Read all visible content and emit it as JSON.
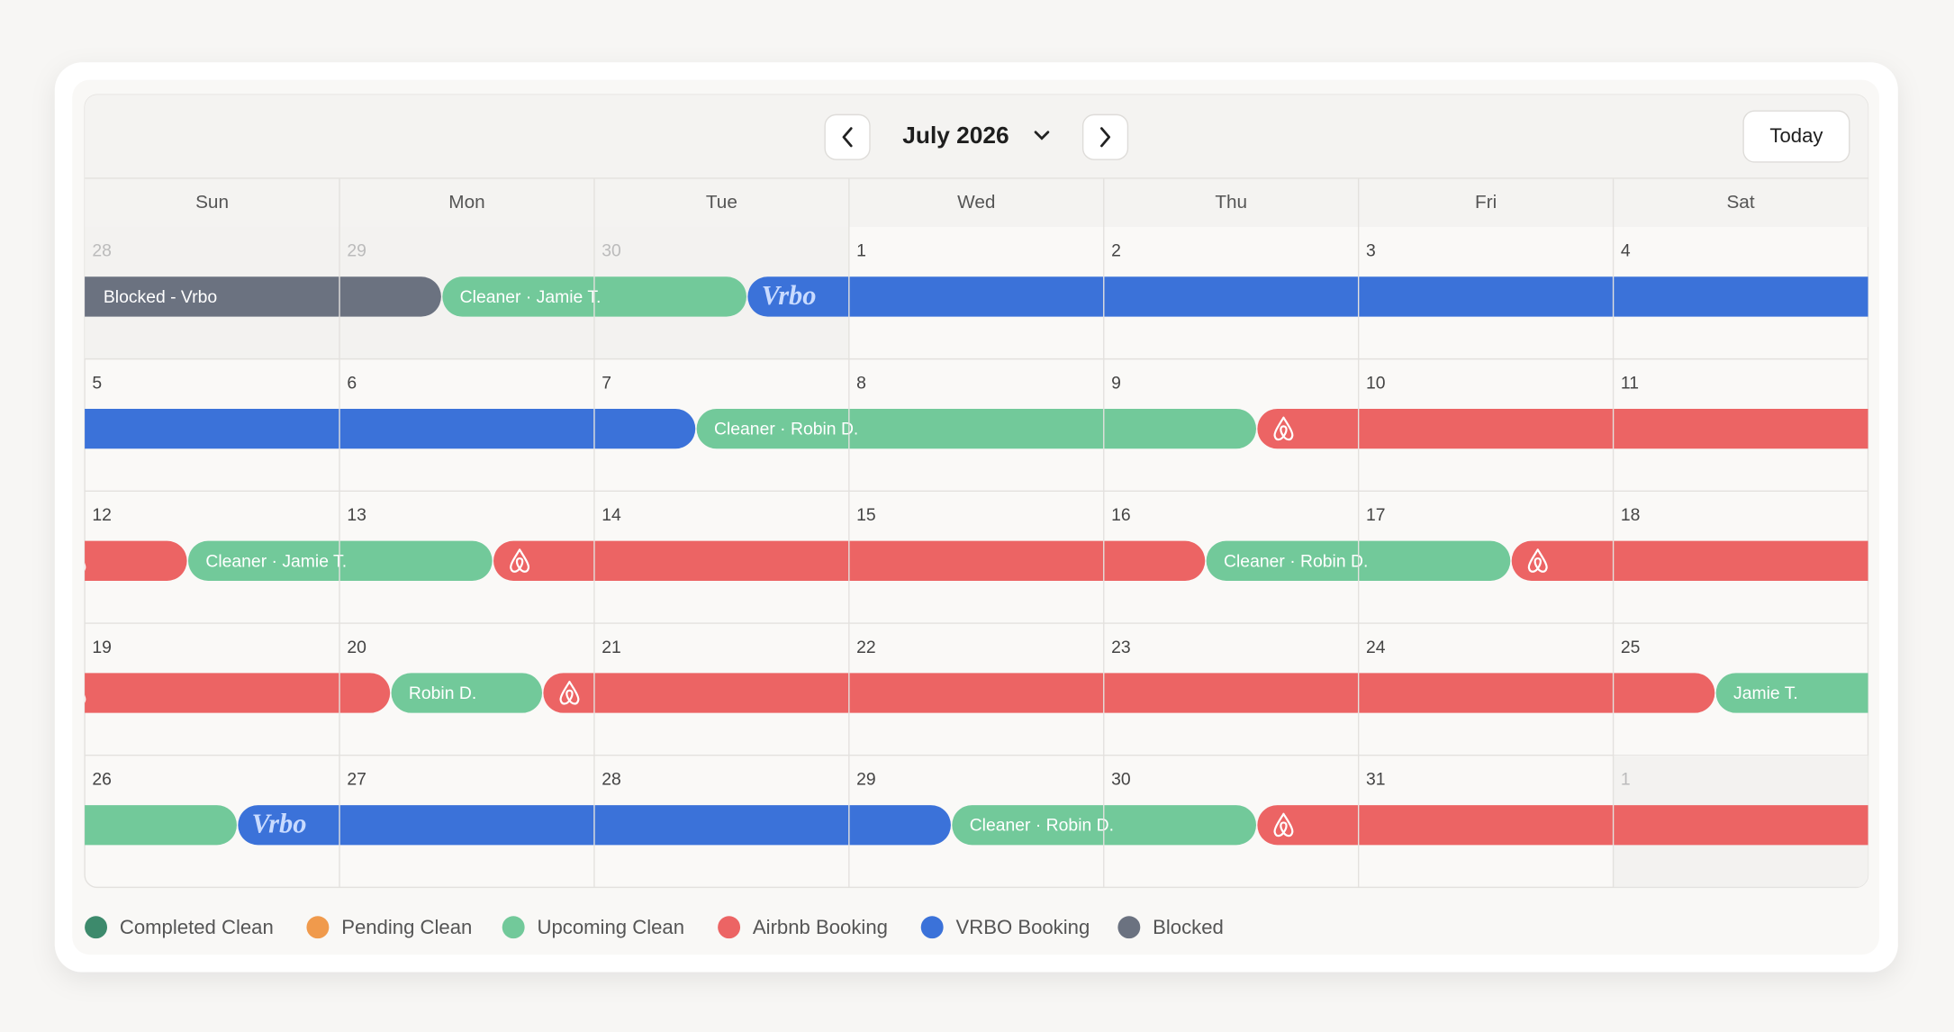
{
  "header": {
    "month": "July 2026",
    "today": "Today"
  },
  "weekdays": [
    "Sun",
    "Mon",
    "Tue",
    "Wed",
    "Thu",
    "Fri",
    "Sat"
  ],
  "weeks": [
    {
      "days": [
        28,
        29,
        30,
        1,
        2,
        3,
        4
      ],
      "muted": [
        0,
        1,
        2
      ],
      "events": [
        {
          "kind": "blocked",
          "label": "Blocked - Vrbo"
        },
        {
          "kind": "upcoming",
          "label": "Cleaner · Jamie T."
        },
        {
          "kind": "vrbo",
          "label": "Vrbo"
        }
      ]
    },
    {
      "days": [
        5,
        6,
        7,
        8,
        9,
        10,
        11
      ],
      "muted": [],
      "events": [
        {
          "kind": "vrbo"
        },
        {
          "kind": "upcoming",
          "label": "Cleaner · Robin D."
        },
        {
          "kind": "airbnb"
        }
      ]
    },
    {
      "days": [
        12,
        13,
        14,
        15,
        16,
        17,
        18
      ],
      "muted": [],
      "events": [
        {
          "kind": "airbnb"
        },
        {
          "kind": "upcoming",
          "label": "Cleaner · Jamie T."
        },
        {
          "kind": "airbnb"
        },
        {
          "kind": "upcoming",
          "label": "Cleaner · Robin D."
        },
        {
          "kind": "airbnb"
        }
      ]
    },
    {
      "days": [
        19,
        20,
        21,
        22,
        23,
        24,
        25
      ],
      "muted": [],
      "events": [
        {
          "kind": "airbnb"
        },
        {
          "kind": "upcoming",
          "label": "Robin D."
        },
        {
          "kind": "airbnb"
        },
        {
          "kind": "upcoming",
          "label": "Jamie T."
        }
      ]
    },
    {
      "days": [
        26,
        27,
        28,
        29,
        30,
        31,
        1
      ],
      "muted": [
        6
      ],
      "events": [
        {
          "kind": "upcoming"
        },
        {
          "kind": "vrbo",
          "label": "Vrbo"
        },
        {
          "kind": "upcoming",
          "label": "Cleaner · Robin D."
        },
        {
          "kind": "airbnb"
        }
      ]
    }
  ],
  "legend": [
    {
      "label": "Completed Clean",
      "color": "#3d8a6c"
    },
    {
      "label": "Pending Clean",
      "color": "#f09a4c"
    },
    {
      "label": "Upcoming Clean",
      "color": "#72c99a"
    },
    {
      "label": "Airbnb Booking",
      "color": "#ec6464"
    },
    {
      "label": "VRBO Booking",
      "color": "#3b72d9"
    },
    {
      "label": "Blocked",
      "color": "#6b7280"
    }
  ]
}
